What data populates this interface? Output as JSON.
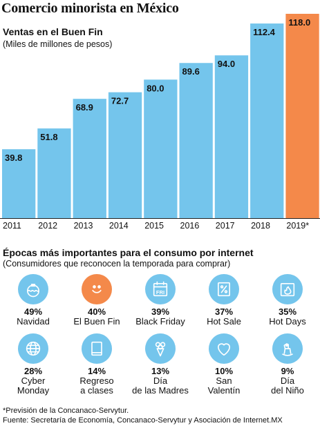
{
  "header": {
    "title": "Comercio minorista en México",
    "subtitle": "Ventas en el Buen Fin",
    "note": "(Miles de millones de pesos)"
  },
  "colors": {
    "bar": "#74c5ec",
    "highlight": "#f4894a"
  },
  "chart_data": {
    "type": "bar",
    "title": "Ventas en el Buen Fin",
    "ylabel": "(Miles de millones de pesos)",
    "categories": [
      "2011",
      "2012",
      "2013",
      "2014",
      "2015",
      "2016",
      "2017",
      "2018",
      "2019*"
    ],
    "values": [
      39.8,
      51.8,
      68.9,
      72.7,
      80.0,
      89.6,
      94.0,
      112.4,
      118.0
    ],
    "value_labels": [
      "39.8",
      "51.8",
      "68.9",
      "72.7",
      "80.0",
      "89.6",
      "94.0",
      "112.4",
      "118.0"
    ],
    "highlight_index": 8,
    "ylim": [
      0,
      118.0
    ],
    "grid": false,
    "legend": "none"
  },
  "epochs_section": {
    "title": "Épocas más importantes para el consumo por internet",
    "note": "(Consumidores que reconocen la temporada para comprar)",
    "items": [
      {
        "pct": "49%",
        "label": "Navidad",
        "icon": "ornament-icon",
        "highlight": false
      },
      {
        "pct": "40%",
        "label": "El Buen Fin",
        "icon": "smiley-icon",
        "highlight": true
      },
      {
        "pct": "39%",
        "label": "Black Friday",
        "icon": "calendar-fri-icon",
        "highlight": false,
        "icon_text": "FRI"
      },
      {
        "pct": "37%",
        "label": "Hot Sale",
        "icon": "percent-tag-icon",
        "highlight": false
      },
      {
        "pct": "35%",
        "label": "Hot Days",
        "icon": "flame-icon",
        "highlight": false
      },
      {
        "pct": "28%",
        "label": "Cyber\nMonday",
        "icon": "globe-icon",
        "highlight": false
      },
      {
        "pct": "14%",
        "label": "Regreso\na clases",
        "icon": "notebook-icon",
        "highlight": false
      },
      {
        "pct": "13%",
        "label": "Día\nde las Madres",
        "icon": "bouquet-icon",
        "highlight": false
      },
      {
        "pct": "10%",
        "label": "San\nValentín",
        "icon": "heart-icon",
        "highlight": false
      },
      {
        "pct": "9%",
        "label": "Día\ndel Niño",
        "icon": "rocking-horse-icon",
        "highlight": false
      }
    ]
  },
  "footer": {
    "note": "*Previsión de la Concanaco-Servytur.",
    "source": "Fuente: Secretaría de Economía, Concanaco-Servytur y Asociación de Internet.MX"
  }
}
